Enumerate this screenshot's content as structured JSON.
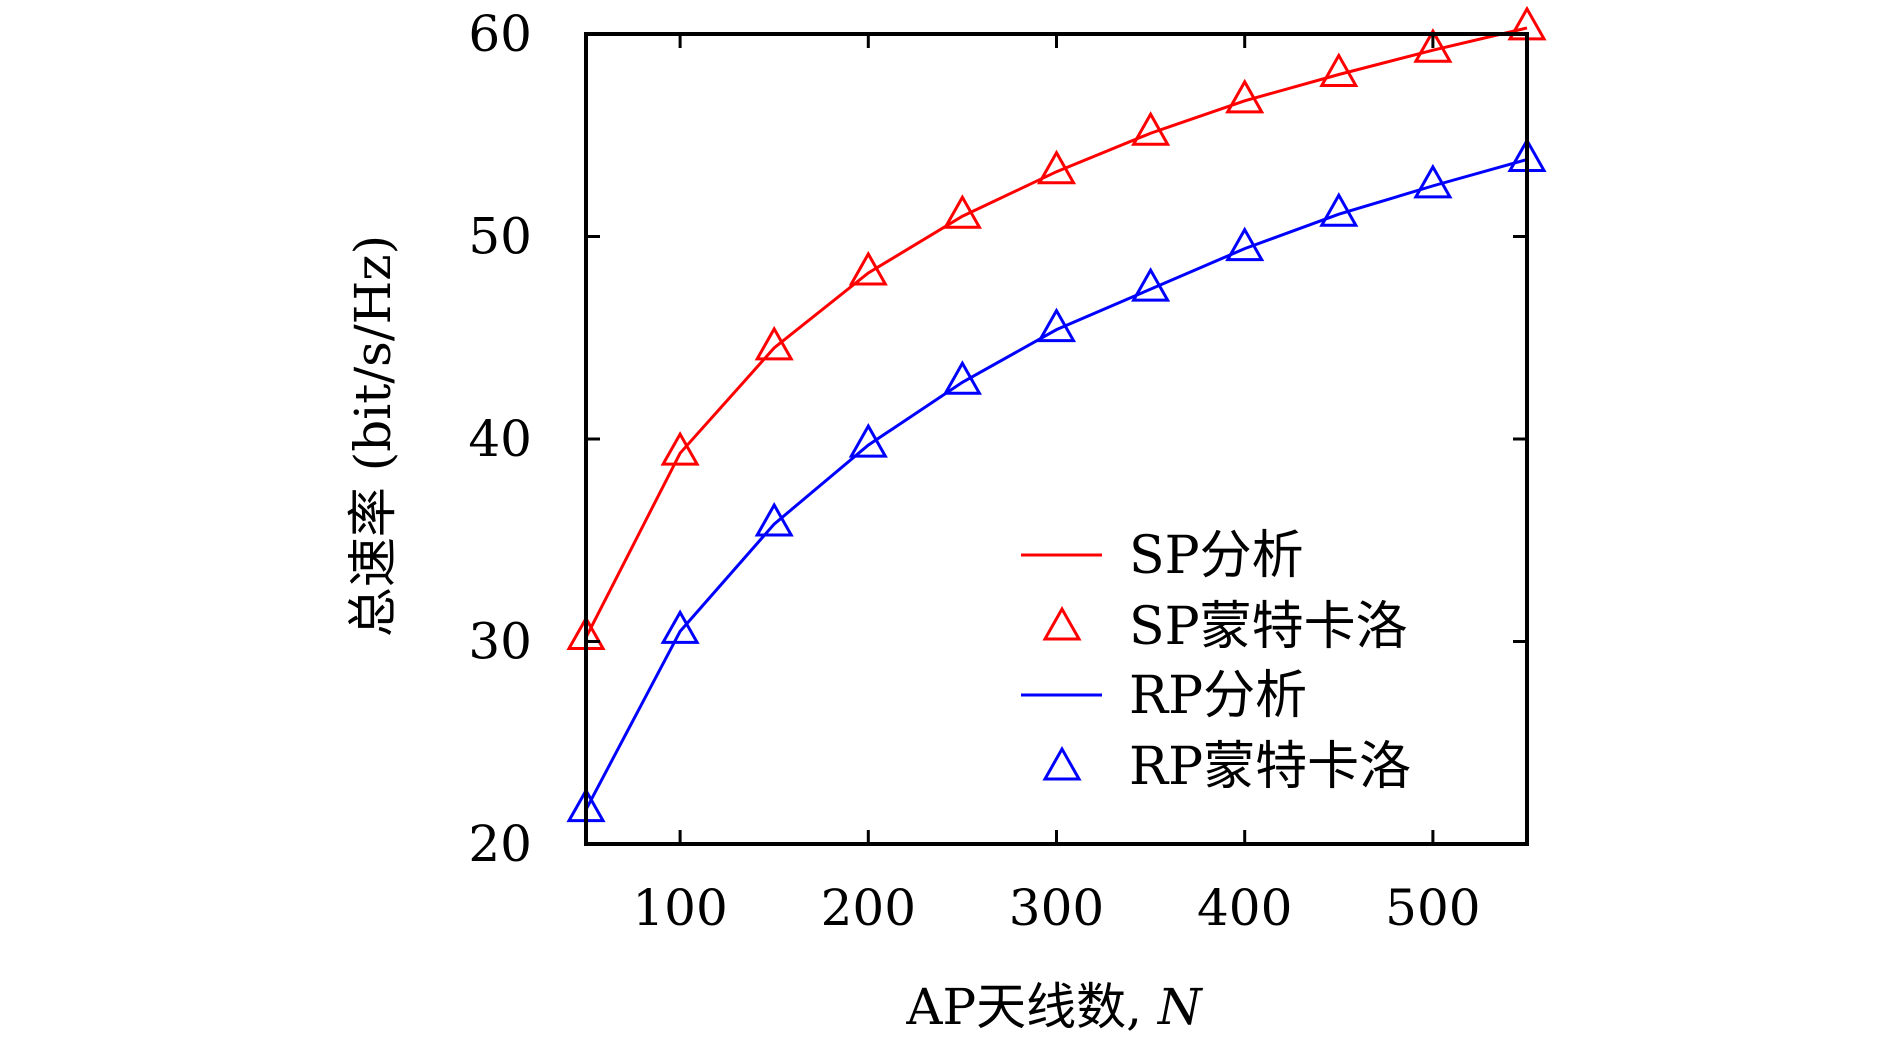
{
  "chart_data": {
    "type": "line",
    "title": "",
    "xlabel": "AP天线数, N",
    "xlabel_prefix": "AP天线数, ",
    "xlabel_var": "N",
    "ylabel": "总速率 (bit/s/Hz)",
    "xlim": [
      50,
      550
    ],
    "ylim": [
      20,
      60
    ],
    "xticks": [
      100,
      200,
      300,
      400,
      500
    ],
    "yticks": [
      20,
      30,
      40,
      50,
      60
    ],
    "grid": false,
    "legend_position": "bottom-right",
    "x": [
      50,
      100,
      150,
      200,
      250,
      300,
      350,
      400,
      450,
      500,
      550
    ],
    "series": [
      {
        "name": "SP分析",
        "kind": "line",
        "color": "#ff0000",
        "values": [
          30.2,
          39.3,
          44.5,
          48.2,
          51.0,
          53.2,
          55.1,
          56.7,
          58.0,
          59.2,
          60.3
        ]
      },
      {
        "name": "SP蒙特卡洛",
        "kind": "marker",
        "marker": "triangle",
        "color": "#ff0000",
        "values": [
          30.2,
          39.3,
          44.5,
          48.2,
          51.0,
          53.2,
          55.1,
          56.7,
          58.0,
          59.2,
          60.3
        ]
      },
      {
        "name": "RP分析",
        "kind": "line",
        "color": "#0000ff",
        "values": [
          21.7,
          30.5,
          35.8,
          39.7,
          42.8,
          45.4,
          47.4,
          49.4,
          51.1,
          52.5,
          53.8
        ]
      },
      {
        "name": "RP蒙特卡洛",
        "kind": "marker",
        "marker": "triangle",
        "color": "#0000ff",
        "values": [
          21.7,
          30.5,
          35.8,
          39.7,
          42.8,
          45.4,
          47.4,
          49.4,
          51.1,
          52.5,
          53.8
        ]
      }
    ]
  }
}
